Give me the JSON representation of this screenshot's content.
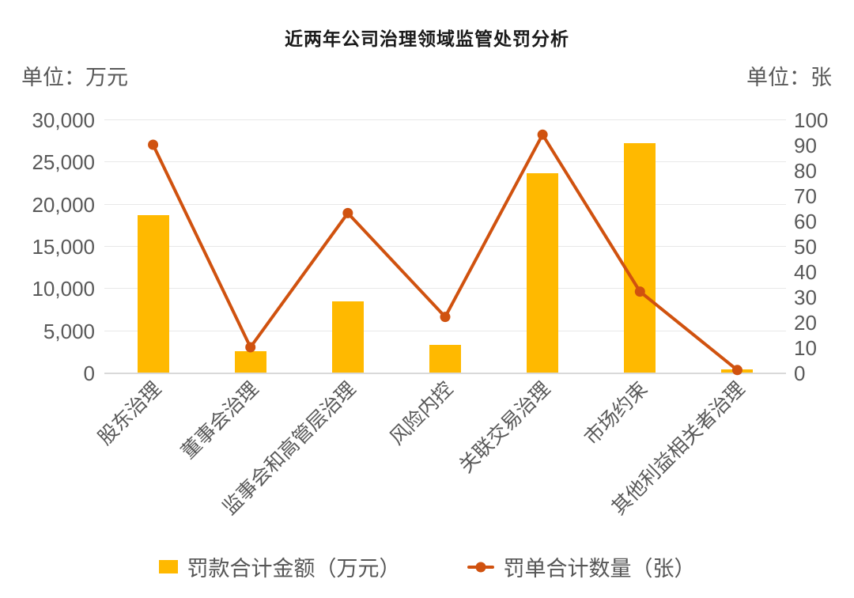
{
  "title": "近两年公司治理领域监管处罚分析",
  "left_axis_unit": "单位：万元",
  "right_axis_unit": "单位：张",
  "legend": {
    "bar_label": "罚款合计金额（万元）",
    "line_label": "罚单合计数量（张）"
  },
  "colors": {
    "bar": "#FFB900",
    "line": "#D0520F",
    "grid": "#E8E8E8",
    "axis_text": "#595959",
    "title_text": "#1A1A1A"
  },
  "chart_data": {
    "type": "bar",
    "combo": "bar+line",
    "title": "近两年公司治理领域监管处罚分析",
    "categories": [
      "股东治理",
      "董事会治理",
      "监事会和高管层治理",
      "风险内控",
      "关联交易治理",
      "市场约束",
      "其他利益相关者治理"
    ],
    "series": [
      {
        "name": "罚款合计金额（万元）",
        "type": "bar",
        "axis": "left",
        "color": "#FFB900",
        "values": [
          18700,
          2500,
          8400,
          3300,
          23600,
          27200,
          400
        ]
      },
      {
        "name": "罚单合计数量（张）",
        "type": "line",
        "axis": "right",
        "color": "#D0520F",
        "values": [
          90,
          10,
          63,
          22,
          94,
          32,
          1
        ]
      }
    ],
    "left_axis": {
      "label": "单位：万元",
      "min": 0,
      "max": 30000,
      "step": 5000,
      "tick_labels": [
        "30,000",
        "25,000",
        "20,000",
        "15,000",
        "10,000",
        "5,000",
        "0"
      ]
    },
    "right_axis": {
      "label": "单位：张",
      "min": 0,
      "max": 100,
      "step": 10,
      "tick_labels": [
        "100",
        "90",
        "80",
        "70",
        "60",
        "50",
        "40",
        "30",
        "20",
        "10",
        "0"
      ]
    },
    "grid": true,
    "legend_position": "bottom"
  }
}
